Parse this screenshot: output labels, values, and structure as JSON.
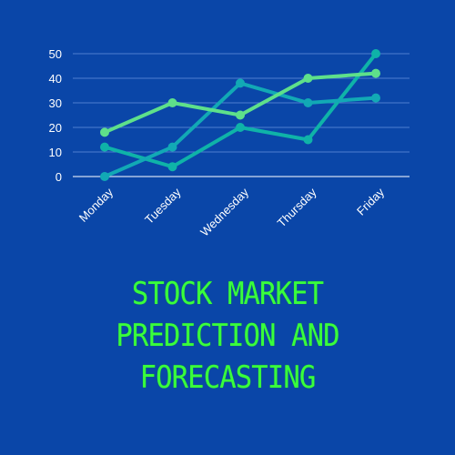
{
  "theme": {
    "background": "#0a46a8",
    "title_color": "#39ff3c",
    "axis_color": "#ffffff",
    "grid_color": "#4f7fd0"
  },
  "title_lines": [
    "STOCK MARKET",
    "PREDICTION AND",
    "FORECASTING"
  ],
  "chart_data": {
    "type": "line",
    "categories": [
      "Monday",
      "Tuesday",
      "Wednesday",
      "Thursday",
      "Friday"
    ],
    "series": [
      {
        "color": "#0fb3a8",
        "values": [
          12,
          4,
          20,
          15,
          50
        ]
      },
      {
        "color": "#12a9b5",
        "values": [
          0,
          12,
          38,
          30,
          32
        ]
      },
      {
        "color": "#5ee08a",
        "values": [
          18,
          30,
          25,
          40,
          42
        ]
      }
    ],
    "ylim": [
      0,
      50
    ],
    "yticks": [
      0,
      10,
      20,
      30,
      40,
      50
    ],
    "grid": true,
    "x_tick_rotation": -45
  }
}
